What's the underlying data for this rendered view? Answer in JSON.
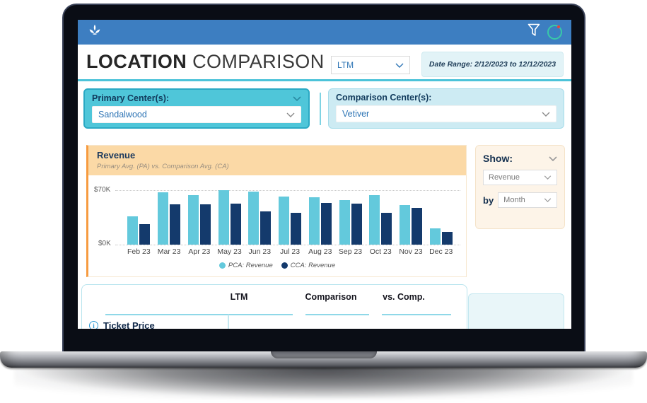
{
  "header": {
    "logo_icon": "spa-leaf",
    "filter_icon": "filter-funnel",
    "info_icon": "info-circle"
  },
  "title": {
    "bold": "LOCATION",
    "light": "COMPARISON"
  },
  "period_select": {
    "value": "LTM"
  },
  "date_range": "Date Range: 2/12/2023 to 12/12/2023",
  "primary_center": {
    "label": "Primary Center(s):",
    "value": "Sandalwood"
  },
  "comparison_center": {
    "label": "Comparison Center(s):",
    "value": "Vetiver"
  },
  "chart_card": {
    "title": "Revenue",
    "subtitle": "Primary Avg. (PA) vs. Comparison Avg. (CA)"
  },
  "chart_data": {
    "type": "bar",
    "title": "Revenue",
    "subtitle": "Primary Avg. (PA) vs. Comparison Avg. (CA)",
    "categories": [
      "Feb 23",
      "Mar 23",
      "Apr 23",
      "May 23",
      "Jun 23",
      "Jul 23",
      "Aug 23",
      "Sep 23",
      "Oct 23",
      "Nov 23",
      "Dec 23"
    ],
    "series": [
      {
        "name": "PCA: Revenue",
        "color": "#63c9dc",
        "values": [
          36,
          67,
          64,
          70,
          68,
          62,
          61,
          57,
          64,
          51,
          21
        ]
      },
      {
        "name": "CCA: Revenue",
        "color": "#143a6c",
        "values": [
          26,
          52,
          52,
          53,
          43,
          41,
          54,
          53,
          41,
          47,
          16
        ]
      }
    ],
    "unit": "K",
    "ylim": [
      0,
      70
    ],
    "ytick_labels": [
      "$70K",
      "$0K"
    ],
    "grid": "dotted-horizontal",
    "legend_position": "bottom"
  },
  "show_panel": {
    "label": "Show:",
    "metric_value": "Revenue",
    "by_label": "by",
    "interval_value": "Month"
  },
  "table": {
    "columns": [
      "LTM",
      "Comparison",
      "vs. Comp."
    ],
    "rows": [
      {
        "label": "Ticket Price",
        "has_info_icon": true
      }
    ]
  },
  "colors": {
    "topbar_blue": "#3d7ec1",
    "teal_accent": "#4cc3d9",
    "primary_panel": "#4fc6d9",
    "comparison_panel": "#cdebf3",
    "chart_header_peach": "#fbd9a6",
    "chart_accent_orange": "#f79b40",
    "bar_primary": "#63c9dc",
    "bar_comparison": "#143a6c",
    "show_panel_cream": "#fdf4e8"
  }
}
